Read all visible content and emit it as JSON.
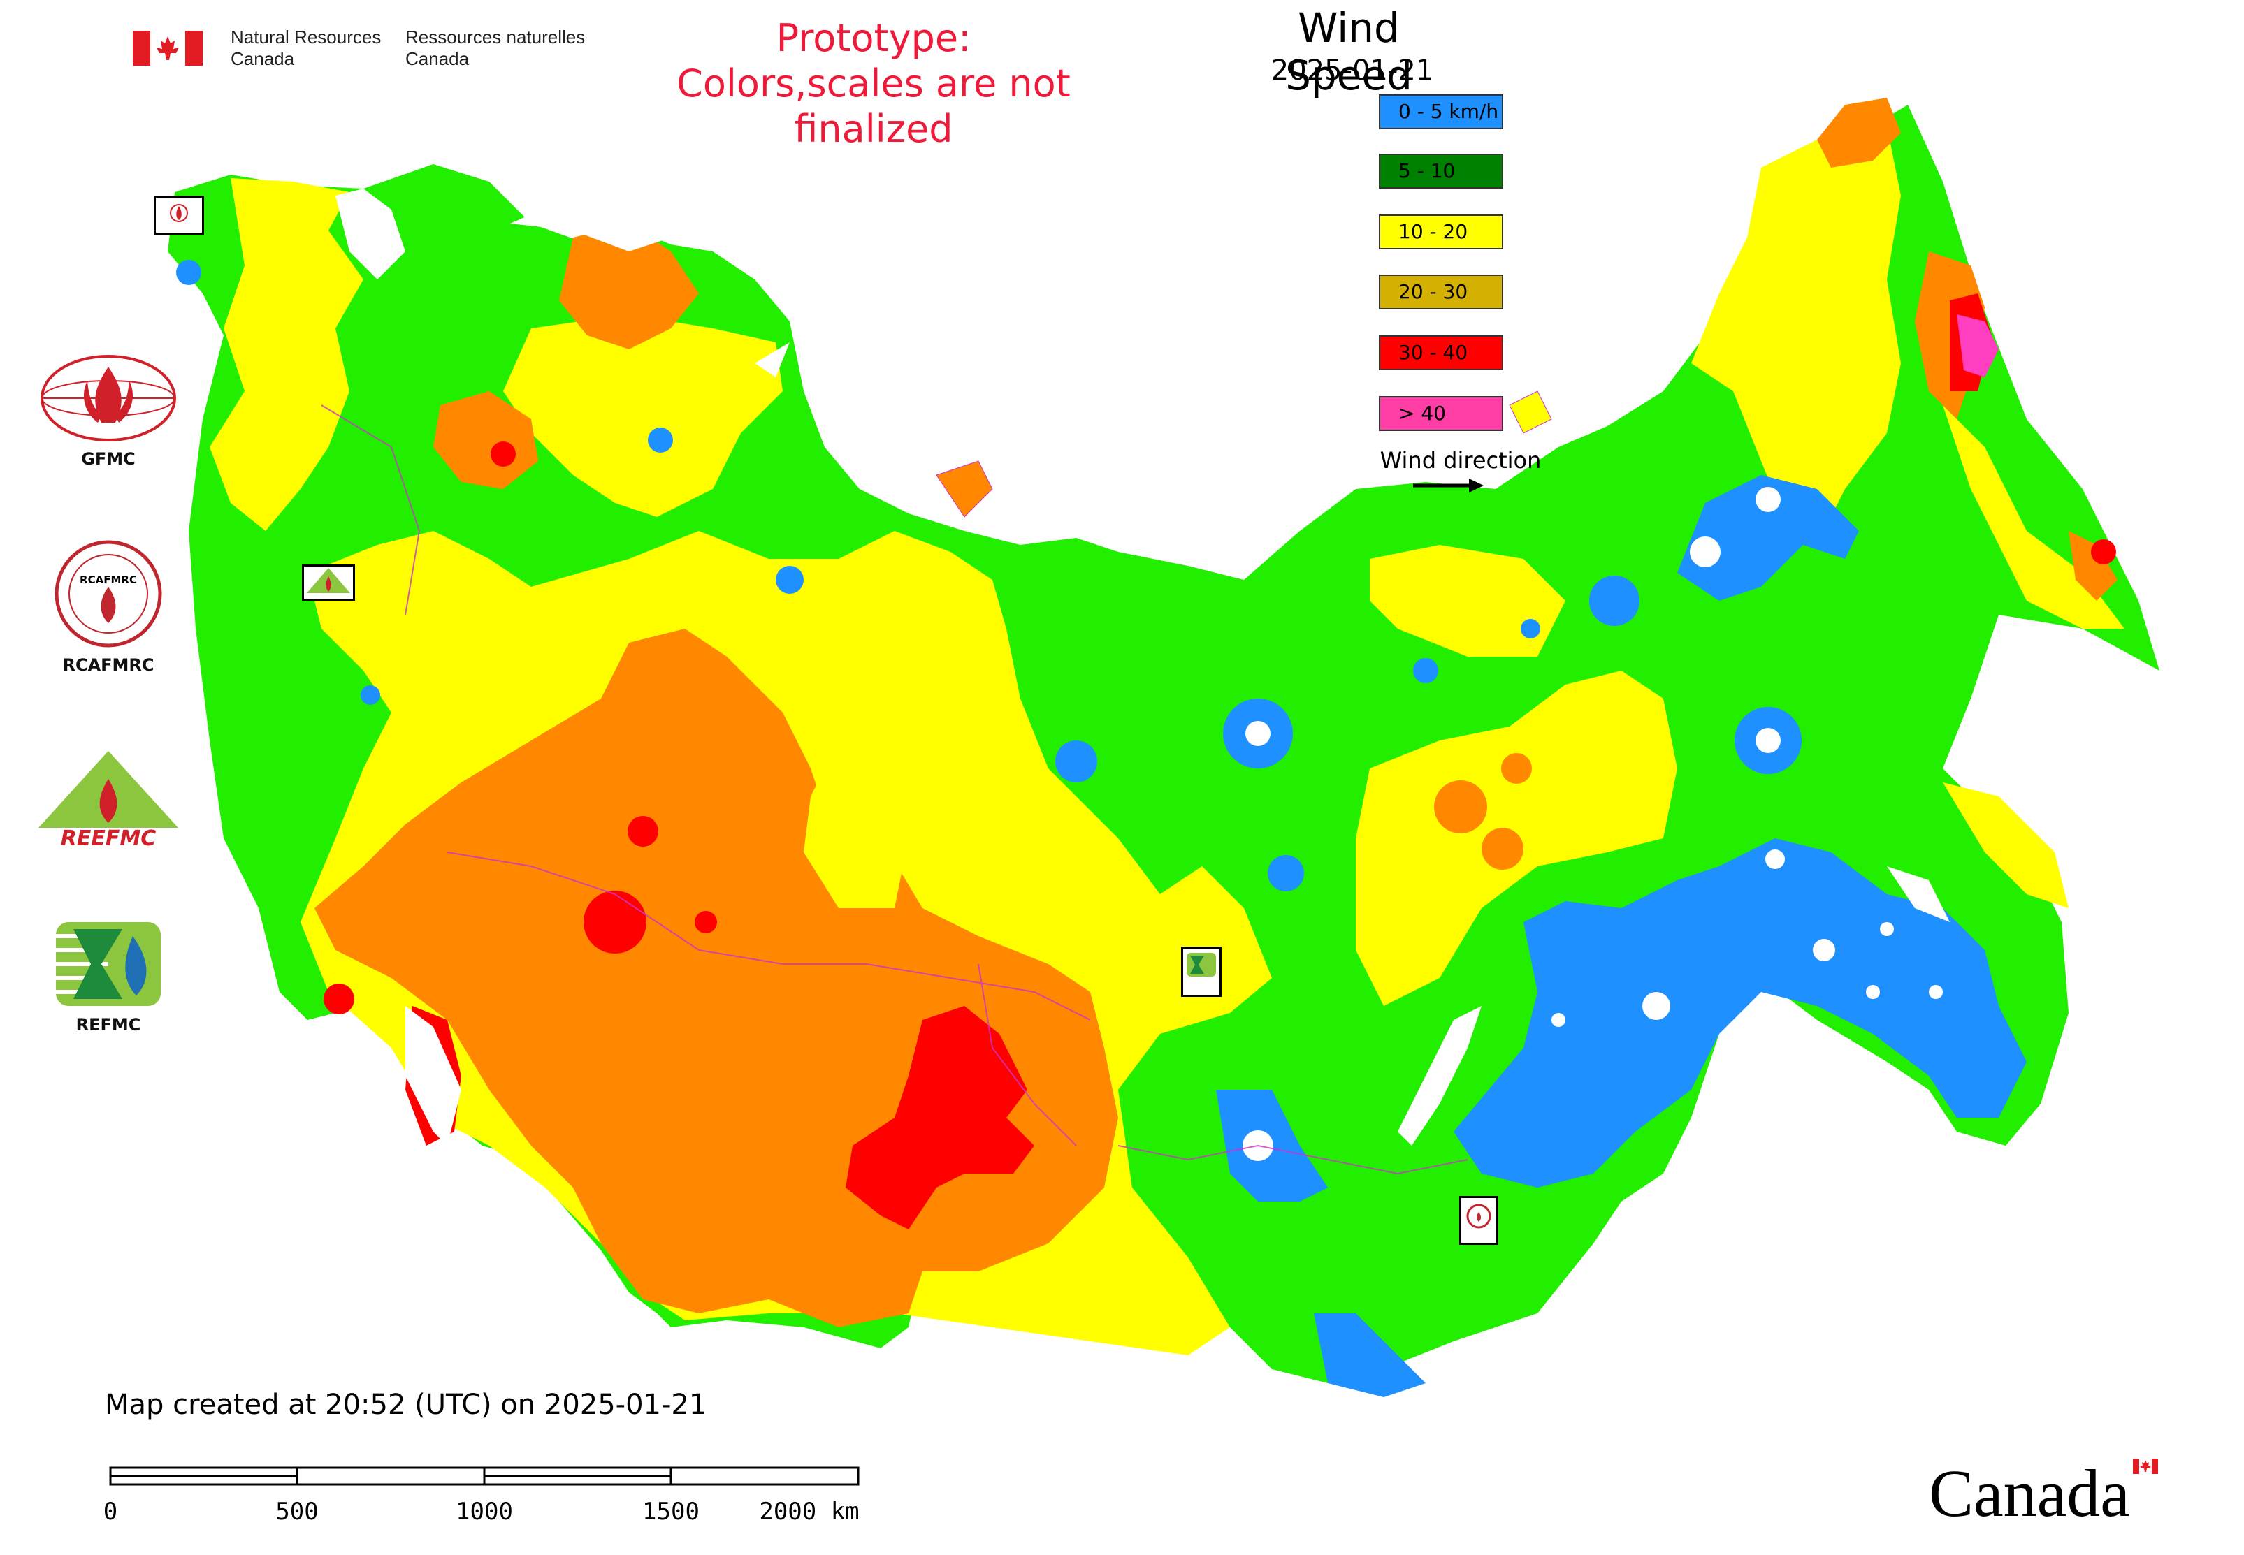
{
  "header": {
    "gov_name_en": [
      "Natural Resources",
      "Canada"
    ],
    "gov_name_fr": [
      "Ressources naturelles",
      "Canada"
    ],
    "prototype_notice": [
      "Prototype:",
      "Colors,scales are not finalized"
    ]
  },
  "legend": {
    "title": "Wind Speed",
    "date": "2025-01-21",
    "items": [
      {
        "label": "0 - 5 km/h",
        "color": "#1e90ff"
      },
      {
        "label": "5 - 10",
        "color": "#008000"
      },
      {
        "label": "10 - 20",
        "color": "#ffff00"
      },
      {
        "label": "20 - 30",
        "color": "#d4b000"
      },
      {
        "label": "30 - 40",
        "color": "#ff0000"
      },
      {
        "label": "> 40",
        "color": "#ff3fa6"
      }
    ],
    "wind_direction_label": "Wind direction"
  },
  "map_colors": {
    "calm": "#1e90ff",
    "low": "#22ee00",
    "moderate": "#ffff00",
    "fresh": "#ff8800",
    "strong": "#ff0000",
    "gale": "#ff3fc0",
    "water": "#ffffff",
    "boundary": "#cc33cc"
  },
  "logos": [
    {
      "name": "GFMC",
      "caption": "GFMC"
    },
    {
      "name": "RCAFMRC",
      "caption": "RCAFMRC",
      "inner_text": "RCAFMRC"
    },
    {
      "name": "REEFMC",
      "caption": "",
      "wordmark": "REEFMC"
    },
    {
      "name": "REFMC",
      "caption": "REFMC"
    }
  ],
  "map_markers": [
    {
      "name": "gfmc-marker",
      "caption": "GFMC"
    },
    {
      "name": "reefmc-marker",
      "caption": "REEFMC"
    },
    {
      "name": "refmc-marker",
      "caption": "REFMC"
    },
    {
      "name": "rcafmrc-marker",
      "caption": "RCAFMRC"
    }
  ],
  "footer": {
    "created_text": "Map created at 20:52 (UTC) on 2025-01-21",
    "scale_labels": [
      "0",
      "500",
      "1000",
      "1500",
      "2000 km"
    ],
    "wordmark": "Canada"
  }
}
